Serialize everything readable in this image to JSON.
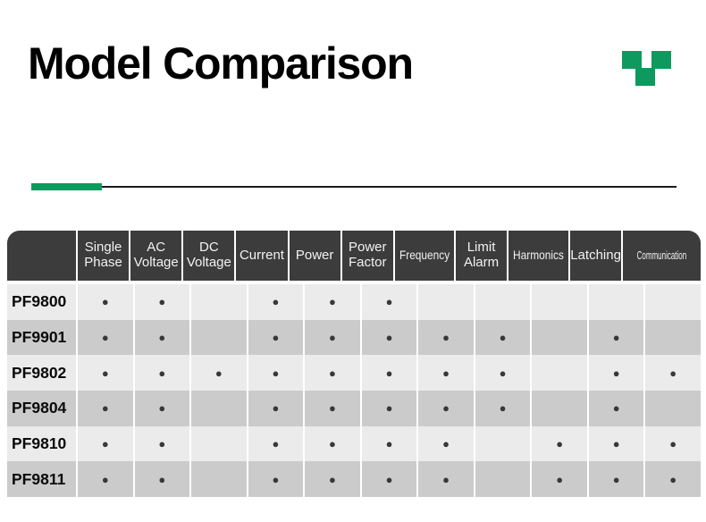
{
  "slide": {
    "title": "Model Comparison"
  },
  "colors": {
    "accent": "#0e9a5f",
    "rule": "#1a1a1a",
    "header_bg": "#3c3c3c",
    "header_text": "#f2f2f2",
    "row_light": "#ebebeb",
    "row_dark": "#cbcbcb",
    "dot": "#383838",
    "model_text": "#0a0a0a"
  },
  "table": {
    "columns": [
      "",
      "Single Phase",
      "AC Voltage",
      "DC Voltage",
      "Current",
      "Power",
      "Power Factor",
      "Frequency",
      "Limit Alarm",
      "Harmonics",
      "Latching",
      "Communication"
    ],
    "dot_symbol": "●",
    "rows": [
      {
        "model": "PF9800",
        "cells": [
          "●",
          "●",
          "",
          "●",
          "●",
          "●",
          "",
          "",
          "",
          "",
          ""
        ]
      },
      {
        "model": "PF9901",
        "cells": [
          "●",
          "●",
          "",
          "●",
          "●",
          "●",
          "●",
          "●",
          "",
          "●",
          ""
        ]
      },
      {
        "model": "PF9802",
        "cells": [
          "●",
          "●",
          "●",
          "●",
          "●",
          "●",
          "●",
          "●",
          "",
          "●",
          "●"
        ]
      },
      {
        "model": "PF9804",
        "cells": [
          "●",
          "●",
          "",
          "●",
          "●",
          "●",
          "●",
          "●",
          "",
          "●",
          ""
        ]
      },
      {
        "model": "PF9810",
        "cells": [
          "●",
          "●",
          "",
          "●",
          "●",
          "●",
          "●",
          "",
          "●",
          "●",
          "●"
        ]
      },
      {
        "model": "PF9811",
        "cells": [
          "●",
          "●",
          "",
          "●",
          "●",
          "●",
          "●",
          "",
          "●",
          "●",
          "●"
        ]
      }
    ]
  }
}
